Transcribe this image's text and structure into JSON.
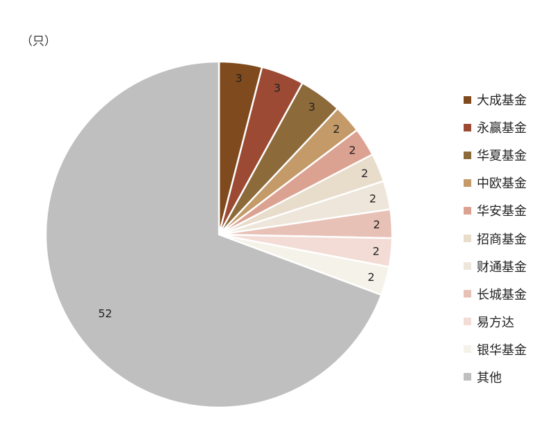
{
  "chart_data": {
    "type": "pie",
    "unit": "（只）",
    "categories": [
      "大成基金",
      "永赢基金",
      "华夏基金",
      "中欧基金",
      "华安基金",
      "招商基金",
      "财通基金",
      "长城基金",
      "易方达",
      "银华基金",
      "其他"
    ],
    "values": [
      3,
      3,
      3,
      2,
      2,
      2,
      2,
      2,
      2,
      2,
      52
    ],
    "colors": [
      "#7f4a1d",
      "#9c4a33",
      "#8c6a3a",
      "#c39a68",
      "#dca291",
      "#e8dccb",
      "#eee6da",
      "#e8c1b6",
      "#f2dcd5",
      "#f5f2ea",
      "#bfbfbf"
    ],
    "legend_position": "right",
    "start_angle_deg": 0,
    "direction": "clockwise"
  }
}
